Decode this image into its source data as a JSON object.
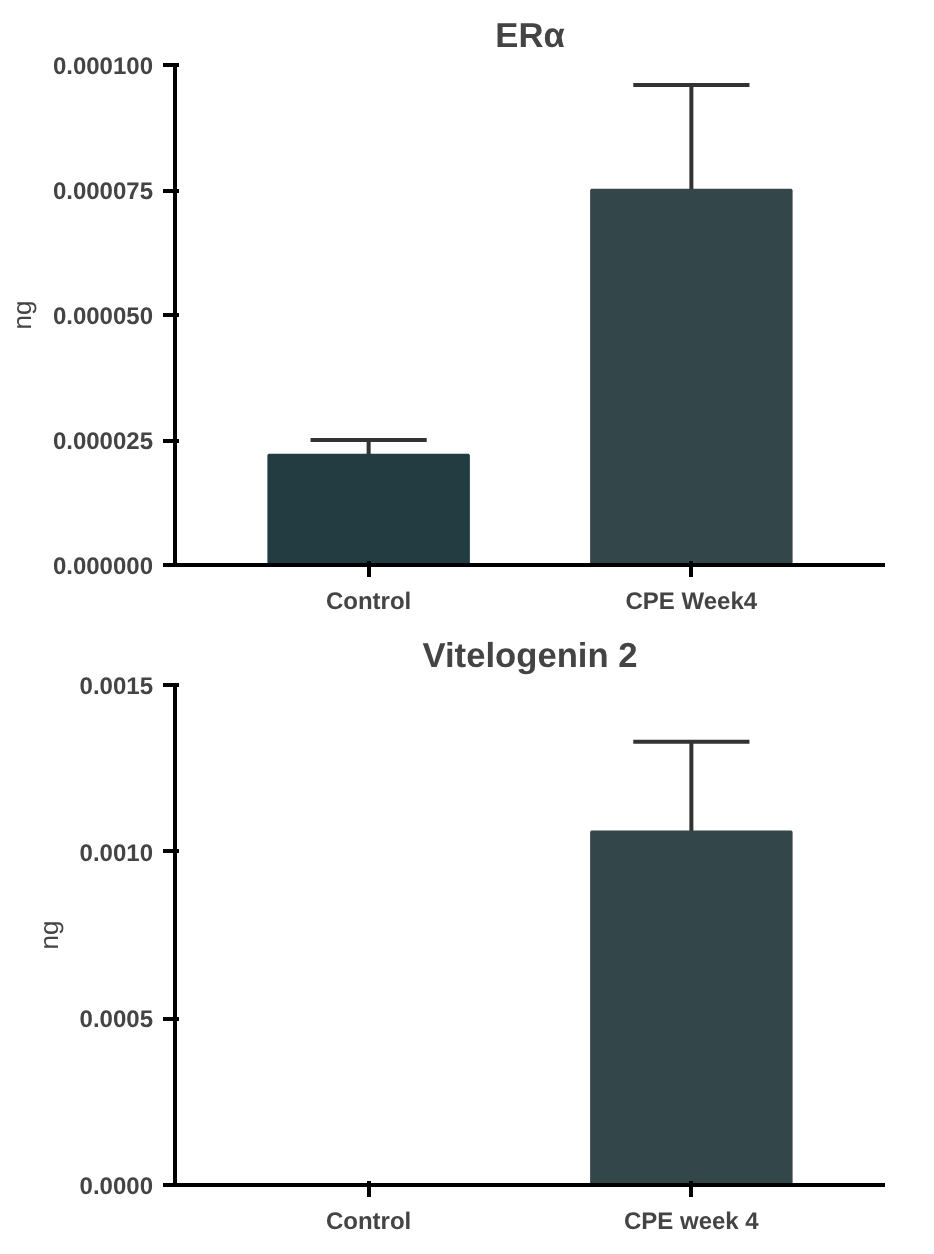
{
  "chart_data": [
    {
      "type": "bar",
      "title": "ERα",
      "ylabel": "ng",
      "categories": [
        "Control",
        "CPE Week4"
      ],
      "values": [
        2.2e-05,
        7.5e-05
      ],
      "colors": [
        "#233c42",
        "#33474a"
      ],
      "errors": [
        3e-06,
        2.1e-05
      ],
      "ylim": [
        0,
        0.0001
      ],
      "yticks": [
        {
          "value": 0,
          "label": "0.000000"
        },
        {
          "value": 2.5e-05,
          "label": "0.000025"
        },
        {
          "value": 5e-05,
          "label": "0.000050"
        },
        {
          "value": 7.5e-05,
          "label": "0.000075"
        },
        {
          "value": 0.0001,
          "label": "0.000100"
        }
      ],
      "grid": false
    },
    {
      "type": "bar",
      "title": "Vitelogenin 2",
      "ylabel": "ng",
      "categories": [
        "Control",
        "CPE week 4"
      ],
      "values": [
        0,
        0.00106
      ],
      "colors": [
        "#233c42",
        "#33474a"
      ],
      "errors": [
        null,
        0.00027
      ],
      "ylim": [
        0,
        0.0015
      ],
      "yticks": [
        {
          "value": 0,
          "label": "0.0000"
        },
        {
          "value": 0.0005,
          "label": "0.0005"
        },
        {
          "value": 0.001,
          "label": "0.0010"
        },
        {
          "value": 0.0015,
          "label": "0.0015"
        }
      ],
      "grid": false
    }
  ]
}
